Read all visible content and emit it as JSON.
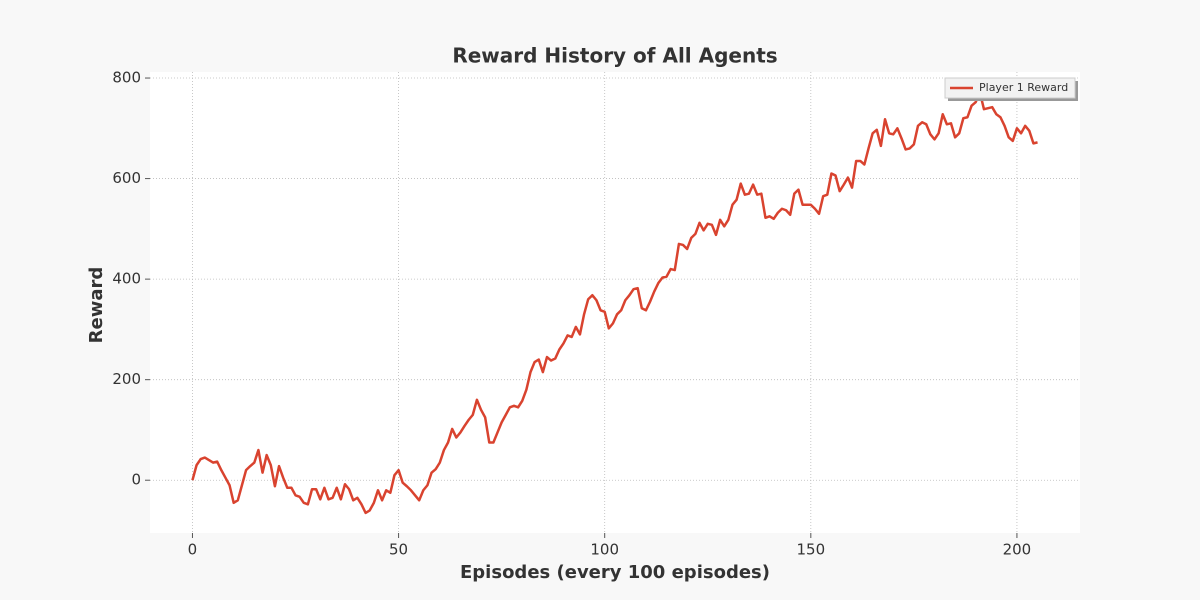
{
  "chart_data": {
    "type": "line",
    "title": "Reward History of All Agents",
    "x_label": "Episodes (every 100 episodes)",
    "y_label": "Reward",
    "x": [
      0,
      1,
      2,
      3,
      4,
      5,
      6,
      7,
      8,
      9,
      10,
      11,
      12,
      13,
      14,
      15,
      16,
      17,
      18,
      19,
      20,
      21,
      22,
      23,
      24,
      25,
      26,
      27,
      28,
      29,
      30,
      31,
      32,
      33,
      34,
      35,
      36,
      37,
      38,
      39,
      40,
      41,
      42,
      43,
      44,
      45,
      46,
      47,
      48,
      49,
      50,
      51,
      52,
      53,
      54,
      55,
      56,
      57,
      58,
      59,
      60,
      61,
      62,
      63,
      64,
      65,
      66,
      67,
      68,
      69,
      70,
      71,
      72,
      73,
      74,
      75,
      76,
      77,
      78,
      79,
      80,
      81,
      82,
      83,
      84,
      85,
      86,
      87,
      88,
      89,
      90,
      91,
      92,
      93,
      94,
      95,
      96,
      97,
      98,
      99,
      100,
      101,
      102,
      103,
      104,
      105,
      106,
      107,
      108,
      109,
      110,
      111,
      112,
      113,
      114,
      115,
      116,
      117,
      118,
      119,
      120,
      121,
      122,
      123,
      124,
      125,
      126,
      127,
      128,
      129,
      130,
      131,
      132,
      133,
      134,
      135,
      136,
      137,
      138,
      139,
      140,
      141,
      142,
      143,
      144,
      145,
      146,
      147,
      148,
      149,
      150,
      151,
      152,
      153,
      154,
      155,
      156,
      157,
      158,
      159,
      160,
      161,
      162,
      163,
      164,
      165,
      166,
      167,
      168,
      169,
      170,
      171,
      172,
      173,
      174,
      175,
      176,
      177,
      178,
      179,
      180,
      181,
      182,
      183,
      184,
      185,
      186,
      187,
      188,
      189,
      190,
      191,
      192,
      193,
      194,
      195,
      196,
      197,
      198,
      199,
      200,
      201,
      202,
      203,
      204,
      205
    ],
    "series": [
      {
        "name": "Player 1 Reward",
        "color": "#d9432f",
        "values": [
          0,
          30,
          42,
          45,
          40,
          35,
          37,
          20,
          5,
          -10,
          -45,
          -40,
          -10,
          20,
          28,
          35,
          60,
          15,
          50,
          30,
          -12,
          28,
          5,
          -15,
          -15,
          -30,
          -33,
          -45,
          -48,
          -18,
          -18,
          -38,
          -15,
          -38,
          -35,
          -15,
          -38,
          -8,
          -18,
          -40,
          -35,
          -48,
          -65,
          -60,
          -45,
          -20,
          -40,
          -20,
          -25,
          10,
          20,
          -5,
          -12,
          -20,
          -30,
          -40,
          -20,
          -10,
          15,
          22,
          35,
          60,
          75,
          102,
          85,
          95,
          108,
          120,
          130,
          160,
          140,
          125,
          75,
          75,
          95,
          115,
          130,
          145,
          148,
          145,
          158,
          180,
          215,
          235,
          240,
          215,
          245,
          238,
          242,
          260,
          272,
          288,
          285,
          305,
          290,
          330,
          360,
          368,
          358,
          338,
          335,
          302,
          312,
          330,
          338,
          358,
          368,
          380,
          382,
          342,
          338,
          355,
          375,
          392,
          403,
          405,
          420,
          418,
          470,
          468,
          460,
          482,
          490,
          512,
          497,
          510,
          508,
          488,
          518,
          505,
          518,
          548,
          558,
          590,
          568,
          570,
          588,
          568,
          570,
          522,
          525,
          520,
          532,
          540,
          537,
          528,
          570,
          578,
          548,
          548,
          548,
          540,
          530,
          565,
          568,
          610,
          606,
          575,
          588,
          602,
          582,
          635,
          635,
          628,
          660,
          690,
          697,
          665,
          718,
          690,
          688,
          700,
          680,
          658,
          660,
          668,
          705,
          712,
          708,
          688,
          678,
          690,
          728,
          708,
          710,
          682,
          690,
          720,
          722,
          745,
          752,
          772,
          738,
          740,
          742,
          728,
          722,
          705,
          682,
          675,
          700,
          690,
          705,
          695,
          670,
          672
        ]
      }
    ],
    "xlim": [
      -10.3,
      215.3
    ],
    "ylim": [
      -105,
      812
    ],
    "xticks": [
      0,
      50,
      100,
      150,
      200
    ],
    "yticks": [
      0,
      200,
      400,
      600,
      800
    ],
    "grid": true,
    "legend": "upper right"
  }
}
